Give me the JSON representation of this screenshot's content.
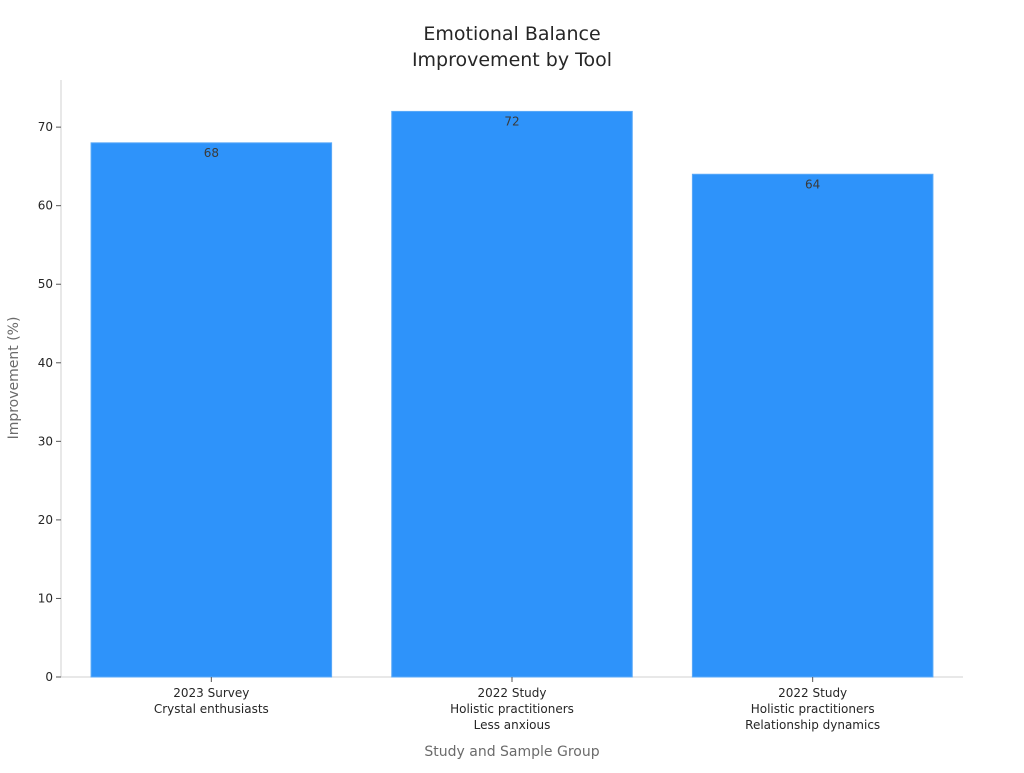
{
  "chart_data": {
    "type": "bar",
    "title": [
      "Emotional Balance",
      "Improvement by Tool"
    ],
    "xlabel": "Study and Sample Group",
    "ylabel": "Improvement (%)",
    "categories": [
      [
        "2023 Survey",
        "Crystal enthusiasts"
      ],
      [
        "2022 Study",
        "Holistic practitioners",
        "Less anxious"
      ],
      [
        "2022 Study",
        "Holistic practitioners",
        "Relationship dynamics"
      ]
    ],
    "values": [
      68,
      72,
      64
    ],
    "data_labels": [
      "68",
      "72",
      "64"
    ],
    "ylim": [
      0,
      76
    ],
    "yticks": [
      0,
      10,
      20,
      30,
      40,
      50,
      60,
      70
    ],
    "grid": false,
    "legend": false,
    "colors": {
      "bar": "#2e93fa",
      "bar_edge": "#5aa9f8"
    }
  }
}
